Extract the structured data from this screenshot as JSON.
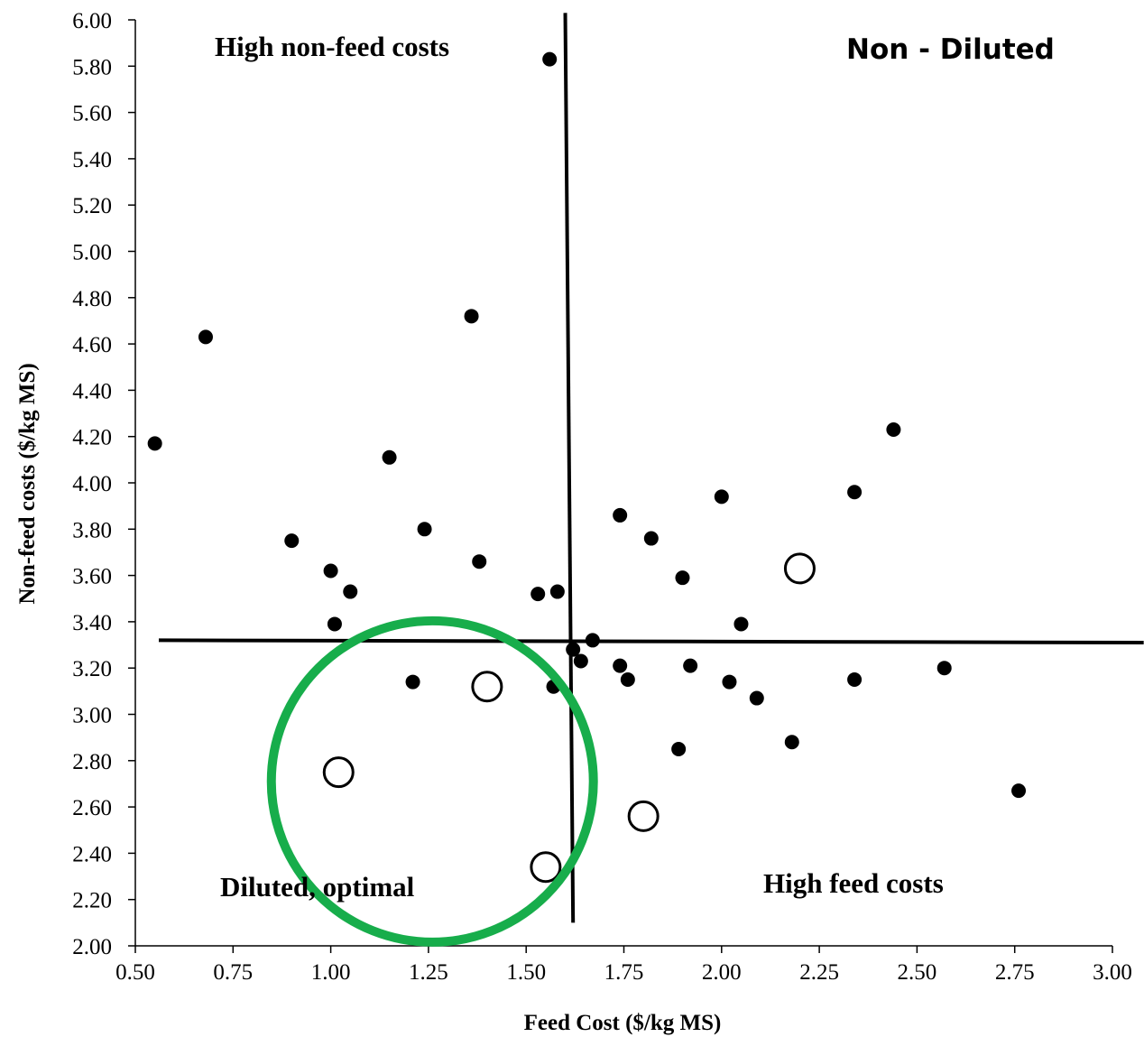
{
  "chart_data": {
    "type": "scatter",
    "xlabel": "Feed Cost ($/kg MS)",
    "ylabel": "Non-feed costs ($/kg MS)",
    "xlim": [
      0.5,
      3.0
    ],
    "ylim": [
      2.0,
      6.0
    ],
    "x_ticks": [
      "0.50",
      "0.75",
      "1.00",
      "1.25",
      "1.50",
      "1.75",
      "2.00",
      "2.25",
      "2.50",
      "2.75",
      "3.00"
    ],
    "y_ticks": [
      "2.00",
      "2.20",
      "2.40",
      "2.60",
      "2.80",
      "3.00",
      "3.20",
      "3.40",
      "3.60",
      "3.80",
      "4.00",
      "4.20",
      "4.40",
      "4.60",
      "4.80",
      "5.00",
      "5.20",
      "5.40",
      "5.60",
      "5.80",
      "6.00"
    ],
    "grid": false,
    "series": [
      {
        "marker": "filled-circle",
        "points": [
          [
            0.55,
            4.17
          ],
          [
            0.68,
            4.63
          ],
          [
            0.9,
            3.75
          ],
          [
            1.0,
            3.62
          ],
          [
            1.01,
            3.39
          ],
          [
            1.05,
            3.53
          ],
          [
            1.15,
            4.11
          ],
          [
            1.21,
            3.14
          ],
          [
            1.24,
            3.8
          ],
          [
            1.36,
            4.72
          ],
          [
            1.38,
            3.66
          ],
          [
            1.53,
            3.52
          ],
          [
            1.56,
            5.83
          ],
          [
            1.57,
            3.12
          ],
          [
            1.58,
            3.53
          ],
          [
            1.62,
            3.28
          ],
          [
            1.64,
            3.23
          ],
          [
            1.67,
            3.32
          ],
          [
            1.74,
            3.86
          ],
          [
            1.74,
            3.21
          ],
          [
            1.76,
            3.15
          ],
          [
            1.82,
            3.76
          ],
          [
            1.89,
            2.85
          ],
          [
            1.9,
            3.59
          ],
          [
            1.92,
            3.21
          ],
          [
            2.0,
            3.94
          ],
          [
            2.02,
            3.14
          ],
          [
            2.05,
            3.39
          ],
          [
            2.09,
            3.07
          ],
          [
            2.18,
            2.88
          ],
          [
            2.34,
            3.96
          ],
          [
            2.34,
            3.15
          ],
          [
            2.44,
            4.23
          ],
          [
            2.57,
            3.2
          ],
          [
            2.76,
            2.67
          ]
        ]
      },
      {
        "marker": "open-circle",
        "points": [
          [
            1.02,
            2.75
          ],
          [
            1.4,
            3.12
          ],
          [
            1.55,
            2.34
          ],
          [
            1.8,
            2.56
          ],
          [
            2.2,
            3.63
          ]
        ]
      }
    ],
    "reference_lines": {
      "vertical": {
        "x": [
          1.6,
          1.62
        ],
        "y": [
          6.03,
          2.1
        ]
      },
      "horizontal": {
        "x": [
          0.56,
          3.08
        ],
        "y": [
          3.32,
          3.31
        ]
      }
    },
    "highlight_circle": {
      "color": "#17ad4b",
      "center": [
        1.26,
        2.71
      ],
      "radius_x": 0.412,
      "radius_y": 0.694
    },
    "annotations": {
      "top_left": "High non-feed costs",
      "top_right": "Non - Diluted",
      "bottom_left": "Diluted, optimal",
      "bottom_right": "High feed costs"
    }
  }
}
